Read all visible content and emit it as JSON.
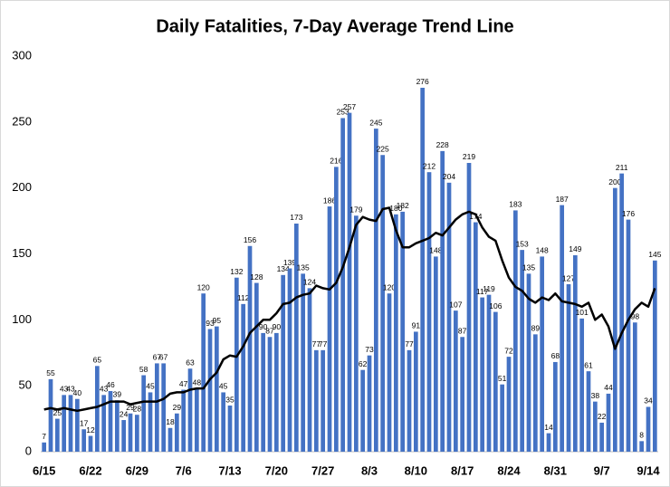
{
  "chart_data": {
    "type": "bar",
    "title": "Daily Fatalities, 7-Day Average Trend Line",
    "categories": [
      "6/15",
      null,
      null,
      null,
      null,
      null,
      null,
      "6/22",
      null,
      null,
      null,
      null,
      null,
      null,
      "6/29",
      null,
      null,
      null,
      null,
      null,
      null,
      "7/6",
      null,
      null,
      null,
      null,
      null,
      null,
      "7/13",
      null,
      null,
      null,
      null,
      null,
      null,
      "7/20",
      null,
      null,
      null,
      null,
      null,
      null,
      "7/27",
      null,
      null,
      null,
      null,
      null,
      null,
      "8/3",
      null,
      null,
      null,
      null,
      null,
      null,
      "8/10",
      null,
      null,
      null,
      null,
      null,
      null,
      "8/17",
      null,
      null,
      null,
      null,
      null,
      null,
      "8/24",
      null,
      null,
      null,
      null,
      null,
      null,
      "8/31",
      null,
      null,
      null,
      null,
      null,
      null,
      "9/7",
      null,
      null,
      null,
      null,
      null,
      null,
      "9/14",
      null
    ],
    "series": [
      {
        "name": "Daily Fatalities",
        "color": "#4472c4",
        "values": [
          7,
          55,
          25,
          43,
          43,
          40,
          17,
          12,
          65,
          43,
          46,
          39,
          24,
          29,
          28,
          58,
          45,
          67,
          67,
          18,
          29,
          47,
          63,
          48,
          120,
          93,
          95,
          45,
          35,
          132,
          112,
          156,
          128,
          90,
          87,
          90,
          134,
          139,
          173,
          135,
          124,
          77,
          77,
          186,
          216,
          253,
          257,
          179,
          62,
          73,
          245,
          225,
          120,
          180,
          182,
          77,
          91,
          276,
          212,
          148,
          228,
          204,
          107,
          87,
          219,
          174,
          117,
          119,
          106,
          51,
          72,
          183,
          153,
          135,
          89,
          148,
          14,
          68,
          187,
          127,
          149,
          101,
          61,
          38,
          22,
          44,
          200,
          211,
          176,
          98,
          8,
          34,
          145
        ]
      },
      {
        "name": "7-Day Average",
        "color": "#000000",
        "type": "line",
        "values": [
          32,
          33,
          32,
          33,
          32,
          31,
          32,
          33,
          34,
          36,
          38,
          38,
          38,
          36,
          37,
          38,
          38,
          38,
          40,
          44,
          45,
          45,
          47,
          48,
          48,
          55,
          60,
          70,
          73,
          72,
          80,
          90,
          95,
          100,
          100,
          105,
          112,
          113,
          117,
          119,
          120,
          126,
          124,
          123,
          128,
          140,
          155,
          172,
          178,
          176,
          175,
          184,
          185,
          168,
          155,
          155,
          158,
          160,
          162,
          166,
          164,
          170,
          176,
          180,
          182,
          180,
          170,
          163,
          160,
          145,
          132,
          125,
          122,
          116,
          113,
          117,
          115,
          120,
          114,
          113,
          112,
          110,
          113,
          100,
          104,
          95,
          78,
          90,
          100,
          108,
          113,
          110,
          124
        ]
      }
    ],
    "ylim": [
      0,
      300
    ],
    "yticks": [
      0,
      50,
      100,
      150,
      200,
      250,
      300
    ],
    "grid": false
  }
}
